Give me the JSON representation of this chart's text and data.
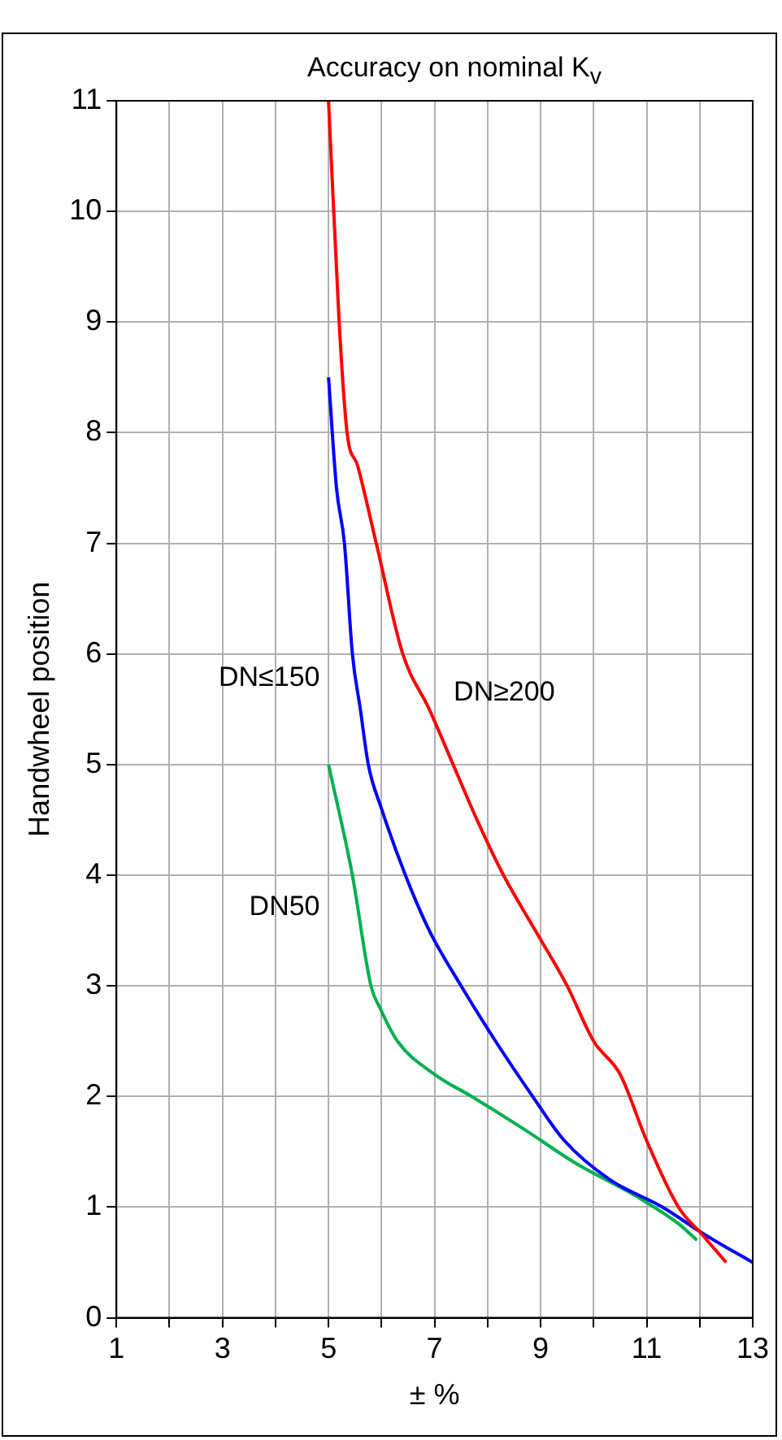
{
  "chart_data": {
    "type": "line",
    "title": "Accuracy on nominal K$_{v}$",
    "xlabel": "± %",
    "ylabel": "Handwheel position",
    "xlim": [
      1,
      13
    ],
    "ylim": [
      0,
      11
    ],
    "xticks": [
      1,
      {
        "value": 2,
        "label": null
      },
      3,
      {
        "value": 4,
        "label": null
      },
      5,
      {
        "value": 6,
        "label": null
      },
      7,
      {
        "value": 8,
        "label": null
      },
      9,
      {
        "value": 10,
        "label": null
      },
      11,
      {
        "value": 12,
        "label": null
      },
      13
    ],
    "yticks": [
      0,
      1,
      2,
      3,
      4,
      5,
      6,
      7,
      8,
      9,
      10,
      11
    ],
    "grid": true,
    "legend": false,
    "marker": "none",
    "line_style": "solid",
    "series": [
      {
        "name": "DN≥200",
        "color": "#ff0000",
        "x": [
          5,
          5.2,
          5.35,
          5.55,
          5.9,
          6.4,
          6.9,
          7.35,
          7.8,
          8.3,
          8.9,
          9.5,
          10.0,
          10.5,
          11.0,
          11.6,
          12.05,
          12.5
        ],
        "values": [
          11,
          9,
          8,
          7.7,
          7,
          6,
          5.5,
          5,
          4.5,
          4,
          3.5,
          3,
          2.5,
          2.2,
          1.6,
          1,
          0.75,
          0.5
        ]
      },
      {
        "name": "DN≤150",
        "color": "#0000ff",
        "x": [
          5,
          5.15,
          5.3,
          5.45,
          5.6,
          5.75,
          6.0,
          6.45,
          6.9,
          7.5,
          8.15,
          8.85,
          9.45,
          10.3,
          11.3,
          12.1,
          13
        ],
        "values": [
          8.5,
          7.5,
          7,
          6,
          5.5,
          5,
          4.6,
          4,
          3.5,
          3,
          2.5,
          2,
          1.6,
          1.25,
          1,
          0.75,
          0.5
        ]
      },
      {
        "name": "DN50",
        "color": "#00b050",
        "x": [
          5,
          5.45,
          5.8,
          5.97,
          6.3,
          7.0,
          7.7,
          8.7,
          9.65,
          10.8,
          11.6,
          11.95
        ],
        "values": [
          5,
          4,
          3,
          2.8,
          2.5,
          2.2,
          2,
          1.7,
          1.4,
          1.1,
          0.85,
          0.7
        ]
      }
    ]
  }
}
